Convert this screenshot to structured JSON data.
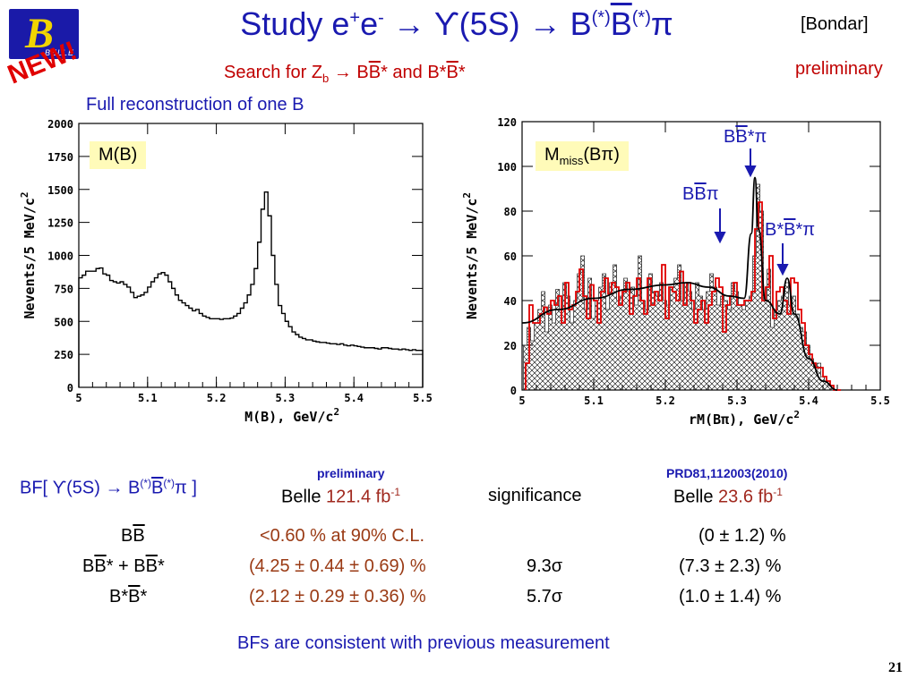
{
  "logo": {
    "letter": "B",
    "text": "BELLE"
  },
  "new_label": "NEW!",
  "title": {
    "pre": "Study e",
    "sup1": "+",
    "mid": "e",
    "sup2": "-",
    "arrow1": " → ϒ(5S) → B",
    "sup3": "(*)",
    "bbar": "B",
    "sup4": "(*)",
    "pi": "π"
  },
  "bondar": "[Bondar]",
  "preliminary_top": "preliminary",
  "subtitle": {
    "pre": "Search for Z",
    "sub": "b",
    "post": " → B",
    "bbar1": "B",
    "mid": "* and B*",
    "bbar2": "B",
    "end": "*"
  },
  "full_reconstruction": "Full reconstruction of one B",
  "left_plot": {
    "label": "M(B)"
  },
  "right_plot": {
    "label_pre": "M",
    "label_sub": "miss",
    "label_post": "(Bπ)"
  },
  "annotations": {
    "bbstar": {
      "b": "B",
      "bbar": "B",
      "rest": "*π"
    },
    "bb": {
      "b": "B",
      "bbar": "B",
      "rest": "π"
    },
    "bsbs": {
      "b": "B*",
      "bbar": "B",
      "rest": "*π"
    }
  },
  "chart_data": [
    {
      "type": "line",
      "xlabel": "M(B), GeV/c",
      "xlabel_sup": "2",
      "ylabel": "Nevents/5 MeV/c",
      "ylabel_sup": "2",
      "xlim": [
        5.0,
        5.5
      ],
      "ylim": [
        0,
        2000
      ],
      "xticks": [
        "5",
        "5.1",
        "5.2",
        "5.3",
        "5.4",
        "5.5"
      ],
      "yticks": [
        "0",
        "250",
        "500",
        "750",
        "1000",
        "1250",
        "1500",
        "1750",
        "2000"
      ],
      "bin_width": 0.005,
      "series": [
        {
          "x0": 5.0,
          "values": [
            830,
            850,
            880,
            880,
            880,
            900,
            905,
            860,
            850,
            810,
            800,
            790,
            800,
            780,
            760,
            720,
            680,
            690,
            700,
            720,
            760,
            800,
            830,
            860,
            870,
            850,
            800,
            750,
            700,
            660,
            640,
            620,
            600,
            580,
            590,
            560,
            540,
            530,
            520,
            520,
            520,
            515,
            520,
            520,
            525,
            540,
            560,
            600,
            640,
            700,
            780,
            900,
            1100,
            1350,
            1480,
            1300,
            1000,
            780,
            620,
            560,
            500,
            460,
            420,
            400,
            380,
            370,
            360,
            360,
            350,
            345,
            340,
            340,
            335,
            330,
            330,
            325,
            330,
            320,
            315,
            320,
            315,
            310,
            305,
            300,
            300,
            300,
            295,
            290,
            300,
            300,
            295,
            290,
            290,
            285,
            290,
            285,
            280,
            285,
            280,
            280
          ]
        }
      ]
    },
    {
      "type": "line",
      "xlabel": "rM(Bπ), GeV/c",
      "xlabel_sup": "2",
      "ylabel": "Nevents/5 MeV/c",
      "ylabel_sup": "2",
      "xlim": [
        5.0,
        5.5
      ],
      "ylim": [
        0,
        120
      ],
      "xticks": [
        "5",
        "5.1",
        "5.2",
        "5.3",
        "5.4",
        "5.5"
      ],
      "yticks": [
        "0",
        "20",
        "40",
        "60",
        "80",
        "100",
        "120"
      ],
      "bin_width": 0.005,
      "series": [
        {
          "name": "",
          "color": "#e00000",
          "x0": 5.005,
          "values": [
            12,
            38,
            30,
            30,
            34,
            37,
            34,
            40,
            38,
            42,
            30,
            48,
            36,
            38,
            44,
            54,
            42,
            32,
            47,
            40,
            30,
            44,
            50,
            43,
            48,
            46,
            38,
            44,
            48,
            34,
            42,
            50,
            40,
            34,
            50,
            38,
            44,
            40,
            56,
            32,
            46,
            44,
            40,
            53,
            38,
            48,
            40,
            30,
            36,
            40,
            30,
            38,
            44,
            50,
            46,
            26,
            38,
            42,
            48,
            38,
            38,
            40,
            40,
            44,
            72,
            84,
            40,
            46,
            60,
            32,
            44,
            46,
            40,
            34,
            50,
            48,
            36,
            30,
            20,
            16,
            12,
            10,
            10,
            6,
            4,
            2,
            0,
            0
          ]
        },
        {
          "name": "",
          "color": "#333333",
          "x0": 5.002,
          "values": [
            20,
            28,
            22,
            30,
            36,
            44,
            26,
            38,
            30,
            45,
            36,
            48,
            42,
            30,
            40,
            52,
            60,
            36,
            50,
            32,
            40,
            46,
            52,
            36,
            48,
            56,
            40,
            42,
            50,
            44,
            46,
            38,
            60,
            40,
            36,
            52,
            44,
            42,
            48,
            40,
            38,
            46,
            50,
            56,
            40,
            48,
            44,
            36,
            48,
            42,
            36,
            44,
            52,
            46,
            38,
            42,
            40,
            36,
            48,
            44,
            38,
            36,
            40,
            42,
            60,
            92,
            80,
            40,
            54,
            28,
            36,
            40,
            42,
            48,
            38,
            42,
            34,
            28,
            26,
            20,
            14,
            10,
            12,
            6,
            4,
            2,
            0,
            0
          ]
        },
        {
          "name": "",
          "color": "#000000",
          "smooth": true,
          "points": [
            [
              5.0,
              30
            ],
            [
              5.05,
              36
            ],
            [
              5.1,
              41
            ],
            [
              5.15,
              45
            ],
            [
              5.2,
              47
            ],
            [
              5.23,
              48
            ],
            [
              5.26,
              46
            ],
            [
              5.29,
              42
            ],
            [
              5.31,
              41
            ],
            [
              5.32,
              70
            ],
            [
              5.325,
              95
            ],
            [
              5.33,
              72
            ],
            [
              5.34,
              40
            ],
            [
              5.36,
              34
            ],
            [
              5.37,
              50
            ],
            [
              5.38,
              34
            ],
            [
              5.4,
              14
            ],
            [
              5.42,
              4
            ],
            [
              5.44,
              0
            ]
          ]
        }
      ]
    }
  ],
  "table": {
    "bf_label": {
      "pre": "BF[ ϒ(5S) → B",
      "sup1": "(*)",
      "bbar": "B",
      "sup2": "(*)",
      "post": "π ]"
    },
    "prelim_small": "preliminary",
    "prd_small": "PRD81,112003(2010)",
    "belle1": {
      "pre": "Belle ",
      "val": "121.4 fb",
      "sup": "-1"
    },
    "significance": "significance",
    "belle2": {
      "pre": "Belle ",
      "val": "23.6 fb",
      "sup": "-1"
    },
    "rows": [
      {
        "label_b": "B",
        "label_bbar": "B",
        "label_rest": "",
        "value": "<0.60 % at 90% C.L.",
        "sig": "",
        "prev": "(0 ± 1.2) %"
      },
      {
        "label_b": "B",
        "label_bbar": "B",
        "label_rest": "* + B",
        "label_bbar2": "B",
        "label_end": "*",
        "value": "(4.25 ± 0.44 ± 0.69) %",
        "sig": "9.3σ",
        "prev": "(7.3 ± 2.3) %"
      },
      {
        "label_b": "B*",
        "label_bbar": "B",
        "label_rest": "*",
        "value": "(2.12 ± 0.29 ± 0.36) %",
        "sig": "5.7σ",
        "prev": "(1.0 ± 1.4) %"
      }
    ]
  },
  "conclusion": "BFs are consistent with previous measurement",
  "page_number": "21"
}
